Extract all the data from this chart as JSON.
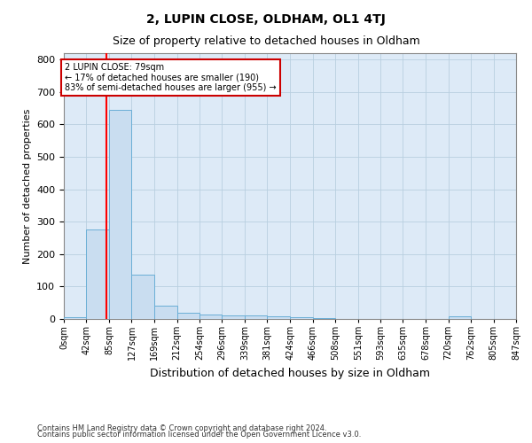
{
  "title": "2, LUPIN CLOSE, OLDHAM, OL1 4TJ",
  "subtitle": "Size of property relative to detached houses in Oldham",
  "xlabel": "Distribution of detached houses by size in Oldham",
  "ylabel": "Number of detached properties",
  "bin_edges": [
    0,
    42,
    85,
    127,
    169,
    212,
    254,
    296,
    339,
    381,
    424,
    466,
    508,
    551,
    593,
    635,
    678,
    720,
    762,
    805,
    847
  ],
  "bar_heights": [
    5,
    275,
    645,
    138,
    40,
    20,
    13,
    10,
    10,
    8,
    5,
    2,
    0,
    0,
    0,
    0,
    0,
    8,
    0,
    0
  ],
  "bar_color": "#c9ddf0",
  "bar_edge_color": "#6aaed6",
  "property_line_x": 79,
  "property_line_color": "#ff0000",
  "annotation_text": "2 LUPIN CLOSE: 79sqm\n← 17% of detached houses are smaller (190)\n83% of semi-detached houses are larger (955) →",
  "annotation_box_facecolor": "#ffffff",
  "annotation_box_edgecolor": "#cc0000",
  "ylim": [
    0,
    820
  ],
  "yticks": [
    0,
    100,
    200,
    300,
    400,
    500,
    600,
    700,
    800
  ],
  "tick_labels": [
    "0sqm",
    "42sqm",
    "85sqm",
    "127sqm",
    "169sqm",
    "212sqm",
    "254sqm",
    "296sqm",
    "339sqm",
    "381sqm",
    "424sqm",
    "466sqm",
    "508sqm",
    "551sqm",
    "593sqm",
    "635sqm",
    "678sqm",
    "720sqm",
    "762sqm",
    "805sqm",
    "847sqm"
  ],
  "footnote_line1": "Contains HM Land Registry data © Crown copyright and database right 2024.",
  "footnote_line2": "Contains public sector information licensed under the Open Government Licence v3.0.",
  "fig_facecolor": "#ffffff",
  "ax_facecolor": "#ddeaf7",
  "grid_color": "#b8cfe0",
  "title_fontsize": 10,
  "subtitle_fontsize": 9,
  "ylabel_fontsize": 8,
  "xlabel_fontsize": 9,
  "annot_fontsize": 7,
  "tick_fontsize": 7,
  "ytick_fontsize": 8,
  "footnote_fontsize": 6
}
